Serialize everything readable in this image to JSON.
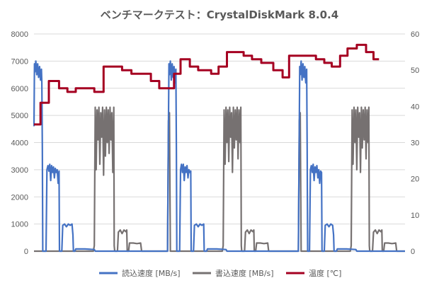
{
  "chart_data": {
    "type": "line",
    "title": "ベンチマークテスト：CrystalDiskMark 8.0.4",
    "y_left": {
      "ticks": [
        "0",
        "1000",
        "2000",
        "3000",
        "4000",
        "5000",
        "6000",
        "7000",
        "8000"
      ],
      "range": [
        0,
        8000
      ]
    },
    "y_right": {
      "ticks": [
        "0",
        "10",
        "20",
        "30",
        "40",
        "50",
        "60"
      ],
      "range": [
        0,
        60
      ]
    },
    "grid": true,
    "legend_position": "bottom",
    "series": [
      {
        "name": "読込速度 [MB/s]",
        "axis": "left",
        "color": "#4472c4",
        "points": [
          [
            0,
            4600
          ],
          [
            0.5,
            6900
          ],
          [
            1,
            6600
          ],
          [
            2,
            7000
          ],
          [
            3,
            6500
          ],
          [
            4,
            6900
          ],
          [
            5,
            6400
          ],
          [
            6,
            6800
          ],
          [
            7,
            6300
          ],
          [
            8,
            6700
          ],
          [
            8.5,
            6200
          ],
          [
            9,
            3800
          ],
          [
            9.5,
            0
          ],
          [
            10,
            0
          ],
          [
            11,
            0
          ],
          [
            12,
            0
          ],
          [
            13,
            0
          ],
          [
            14,
            3000
          ],
          [
            15,
            3150
          ],
          [
            16,
            2950
          ],
          [
            17,
            3200
          ],
          [
            18,
            2600
          ],
          [
            19,
            3150
          ],
          [
            20,
            2900
          ],
          [
            21,
            3100
          ],
          [
            22,
            2700
          ],
          [
            23,
            3050
          ],
          [
            24,
            2900
          ],
          [
            25,
            3000
          ],
          [
            26,
            2500
          ],
          [
            27,
            2950
          ],
          [
            27.5,
            0
          ],
          [
            28,
            0
          ],
          [
            29,
            0
          ],
          [
            30,
            0
          ],
          [
            31,
            950
          ],
          [
            33,
            1000
          ],
          [
            35,
            900
          ],
          [
            37,
            1000
          ],
          [
            39,
            950
          ],
          [
            41,
            1000
          ],
          [
            42,
            600
          ],
          [
            42.5,
            0
          ],
          [
            43,
            0
          ],
          [
            44,
            0
          ],
          [
            45,
            80
          ],
          [
            55,
            80
          ],
          [
            65,
            60
          ],
          [
            66,
            0
          ],
          [
            90,
            0
          ],
          [
            144,
            0
          ],
          [
            145,
            4600
          ],
          [
            145.5,
            6900
          ],
          [
            146,
            6500
          ],
          [
            147,
            7000
          ],
          [
            148,
            6300
          ],
          [
            149,
            6900
          ],
          [
            150,
            6400
          ],
          [
            151,
            6800
          ],
          [
            152,
            6200
          ],
          [
            153,
            6700
          ],
          [
            153.5,
            3800
          ],
          [
            154,
            0
          ],
          [
            157,
            0
          ],
          [
            158,
            3000
          ],
          [
            159,
            3200
          ],
          [
            160,
            2900
          ],
          [
            161,
            3200
          ],
          [
            162,
            2600
          ],
          [
            163,
            3100
          ],
          [
            164,
            2900
          ],
          [
            165,
            3150
          ],
          [
            166,
            2700
          ],
          [
            167,
            3000
          ],
          [
            168,
            2900
          ],
          [
            169,
            2950
          ],
          [
            169.5,
            0
          ],
          [
            172,
            0
          ],
          [
            173,
            950
          ],
          [
            175,
            1000
          ],
          [
            177,
            900
          ],
          [
            179,
            1000
          ],
          [
            181,
            950
          ],
          [
            183,
            1000
          ],
          [
            183.5,
            0
          ],
          [
            186,
            0
          ],
          [
            187,
            80
          ],
          [
            197,
            80
          ],
          [
            207,
            60
          ],
          [
            208,
            0
          ],
          [
            285,
            0
          ],
          [
            286,
            4600
          ],
          [
            286.5,
            6800
          ],
          [
            287,
            6500
          ],
          [
            288,
            7000
          ],
          [
            289,
            6300
          ],
          [
            290,
            6900
          ],
          [
            291,
            6400
          ],
          [
            292,
            6800
          ],
          [
            293,
            6200
          ],
          [
            294,
            6700
          ],
          [
            294.5,
            3800
          ],
          [
            295,
            0
          ],
          [
            297,
            0
          ],
          [
            298,
            3000
          ],
          [
            299,
            3150
          ],
          [
            300,
            2900
          ],
          [
            301,
            3200
          ],
          [
            302,
            2600
          ],
          [
            303,
            3100
          ],
          [
            304,
            2900
          ],
          [
            305,
            3150
          ],
          [
            306,
            2700
          ],
          [
            307,
            3000
          ],
          [
            308,
            2500
          ],
          [
            309,
            2950
          ],
          [
            310,
            2900
          ],
          [
            310.5,
            0
          ],
          [
            313,
            0
          ],
          [
            314,
            950
          ],
          [
            316,
            1000
          ],
          [
            318,
            900
          ],
          [
            320,
            1000
          ],
          [
            322,
            950
          ],
          [
            323,
            600
          ],
          [
            323.5,
            0
          ],
          [
            326,
            0
          ],
          [
            327,
            80
          ],
          [
            337,
            80
          ],
          [
            347,
            60
          ],
          [
            348,
            0
          ],
          [
            400,
            0
          ]
        ]
      },
      {
        "name": "書込速度 [MB/s]",
        "axis": "left",
        "color": "#767171",
        "points": [
          [
            0,
            0
          ],
          [
            1,
            0
          ],
          [
            9,
            0
          ],
          [
            10,
            0
          ],
          [
            64,
            0
          ],
          [
            65,
            200
          ],
          [
            66,
            5300
          ],
          [
            67,
            3000
          ],
          [
            68,
            5200
          ],
          [
            69,
            4100
          ],
          [
            70,
            5300
          ],
          [
            71,
            3200
          ],
          [
            72,
            5100
          ],
          [
            73,
            4200
          ],
          [
            74,
            5300
          ],
          [
            75,
            2800
          ],
          [
            76,
            5200
          ],
          [
            77,
            3500
          ],
          [
            78,
            5300
          ],
          [
            79,
            4000
          ],
          [
            80,
            5200
          ],
          [
            81,
            3600
          ],
          [
            82,
            5300
          ],
          [
            83,
            4100
          ],
          [
            84,
            5100
          ],
          [
            85,
            2900
          ],
          [
            86,
            5300
          ],
          [
            86.5,
            200
          ],
          [
            87,
            0
          ],
          [
            90,
            0
          ],
          [
            91,
            700
          ],
          [
            93,
            780
          ],
          [
            95,
            650
          ],
          [
            97,
            780
          ],
          [
            99,
            720
          ],
          [
            100,
            780
          ],
          [
            100.5,
            0
          ],
          [
            102,
            0
          ],
          [
            103,
            300
          ],
          [
            107,
            300
          ],
          [
            111,
            280
          ],
          [
            115,
            300
          ],
          [
            116,
            0
          ],
          [
            144,
            0
          ],
          [
            145,
            4800
          ],
          [
            146,
            5100
          ],
          [
            147,
            0
          ],
          [
            203,
            0
          ],
          [
            204,
            200
          ],
          [
            205,
            5200
          ],
          [
            206,
            3200
          ],
          [
            207,
            5300
          ],
          [
            208,
            4000
          ],
          [
            209,
            5200
          ],
          [
            210,
            3300
          ],
          [
            211,
            5300
          ],
          [
            212,
            4200
          ],
          [
            213,
            5100
          ],
          [
            214,
            2900
          ],
          [
            215,
            5300
          ],
          [
            216,
            3800
          ],
          [
            217,
            5200
          ],
          [
            218,
            4100
          ],
          [
            219,
            5300
          ],
          [
            220,
            3400
          ],
          [
            221,
            5200
          ],
          [
            222,
            4000
          ],
          [
            223,
            5300
          ],
          [
            223.5,
            200
          ],
          [
            224,
            0
          ],
          [
            227,
            0
          ],
          [
            228,
            700
          ],
          [
            230,
            780
          ],
          [
            232,
            650
          ],
          [
            234,
            780
          ],
          [
            236,
            720
          ],
          [
            237,
            780
          ],
          [
            237.5,
            0
          ],
          [
            239,
            0
          ],
          [
            240,
            300
          ],
          [
            244,
            300
          ],
          [
            248,
            280
          ],
          [
            252,
            300
          ],
          [
            253,
            0
          ],
          [
            285,
            0
          ],
          [
            286,
            4800
          ],
          [
            287,
            5100
          ],
          [
            288,
            0
          ],
          [
            341,
            0
          ],
          [
            342,
            200
          ],
          [
            343,
            5200
          ],
          [
            344,
            3200
          ],
          [
            345,
            5300
          ],
          [
            346,
            4000
          ],
          [
            347,
            5200
          ],
          [
            348,
            3000
          ],
          [
            349,
            5300
          ],
          [
            350,
            4200
          ],
          [
            351,
            5100
          ],
          [
            352,
            2900
          ],
          [
            353,
            5300
          ],
          [
            354,
            3800
          ],
          [
            355,
            5200
          ],
          [
            356,
            4100
          ],
          [
            357,
            5300
          ],
          [
            358,
            3400
          ],
          [
            359,
            5200
          ],
          [
            360,
            4000
          ],
          [
            361,
            5300
          ],
          [
            361.5,
            200
          ],
          [
            362,
            0
          ],
          [
            365,
            0
          ],
          [
            366,
            700
          ],
          [
            368,
            780
          ],
          [
            370,
            650
          ],
          [
            372,
            780
          ],
          [
            374,
            720
          ],
          [
            375,
            780
          ],
          [
            375.5,
            0
          ],
          [
            377,
            0
          ],
          [
            378,
            300
          ],
          [
            382,
            300
          ],
          [
            386,
            280
          ],
          [
            390,
            300
          ],
          [
            391,
            0
          ],
          [
            400,
            0
          ]
        ]
      },
      {
        "name": "温度 [℃]",
        "axis": "right",
        "color": "#a50021",
        "points": [
          [
            0,
            35
          ],
          [
            7,
            35
          ],
          [
            7,
            41
          ],
          [
            16,
            41
          ],
          [
            16,
            47
          ],
          [
            27,
            47
          ],
          [
            27,
            45
          ],
          [
            36,
            45
          ],
          [
            36,
            44
          ],
          [
            45,
            44
          ],
          [
            45,
            45
          ],
          [
            65,
            45
          ],
          [
            65,
            44
          ],
          [
            75,
            44
          ],
          [
            75,
            51
          ],
          [
            95,
            51
          ],
          [
            95,
            50
          ],
          [
            105,
            50
          ],
          [
            105,
            49
          ],
          [
            126,
            49
          ],
          [
            126,
            47
          ],
          [
            135,
            47
          ],
          [
            135,
            45
          ],
          [
            151,
            45
          ],
          [
            151,
            49
          ],
          [
            158,
            49
          ],
          [
            158,
            53
          ],
          [
            168,
            53
          ],
          [
            168,
            51
          ],
          [
            177,
            51
          ],
          [
            177,
            50
          ],
          [
            191,
            50
          ],
          [
            191,
            49
          ],
          [
            199,
            49
          ],
          [
            199,
            51
          ],
          [
            208,
            51
          ],
          [
            208,
            55
          ],
          [
            226,
            55
          ],
          [
            226,
            54
          ],
          [
            235,
            54
          ],
          [
            235,
            53
          ],
          [
            245,
            53
          ],
          [
            245,
            52
          ],
          [
            258,
            52
          ],
          [
            258,
            50
          ],
          [
            268,
            50
          ],
          [
            268,
            48
          ],
          [
            275,
            48
          ],
          [
            275,
            54
          ],
          [
            304,
            54
          ],
          [
            304,
            53
          ],
          [
            313,
            53
          ],
          [
            313,
            52
          ],
          [
            321,
            52
          ],
          [
            321,
            51
          ],
          [
            330,
            51
          ],
          [
            330,
            54
          ],
          [
            338,
            54
          ],
          [
            338,
            56
          ],
          [
            348,
            56
          ],
          [
            348,
            57
          ],
          [
            358,
            57
          ],
          [
            358,
            55
          ],
          [
            366,
            55
          ],
          [
            366,
            53
          ],
          [
            372,
            53
          ]
        ]
      }
    ]
  }
}
